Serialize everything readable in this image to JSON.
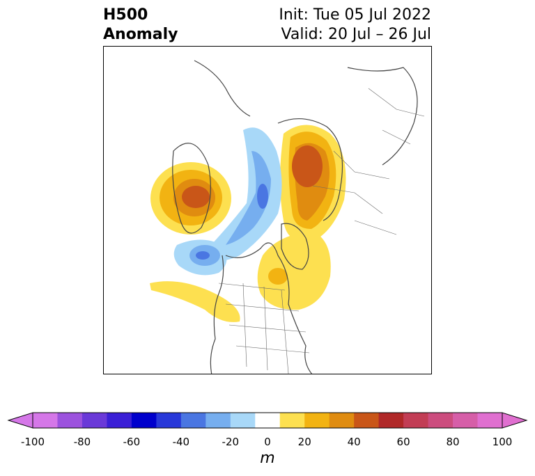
{
  "header": {
    "title_line1": "H500",
    "title_line2": "Anomaly",
    "init_text": "Init: Tue 05 Jul 2022",
    "valid_text": "Valid: 20 Jul – 26 Jul"
  },
  "map": {
    "field": "500 hPa geopotential height anomaly",
    "projection": "north polar stereographic"
  },
  "colorbar": {
    "unit_label": "m",
    "extend": "both",
    "tick_labels": [
      "-100",
      "-80",
      "-60",
      "-40",
      "-20",
      "0",
      "20",
      "40",
      "60",
      "80",
      "100"
    ],
    "levels": [
      -100,
      -90,
      -80,
      -70,
      -60,
      -50,
      -40,
      -30,
      -20,
      -10,
      10,
      20,
      30,
      40,
      50,
      60,
      70,
      80,
      90,
      100
    ],
    "colors": [
      "#d577e8",
      "#9c52de",
      "#6a39d8",
      "#3a1fd6",
      "#0000cc",
      "#2838d9",
      "#4a76e2",
      "#76aeef",
      "#a8d8f8",
      "#ffffff",
      "#fde050",
      "#f2b312",
      "#e08c10",
      "#c95618",
      "#b02828",
      "#c23d55",
      "#cc4c7e",
      "#d65ea8",
      "#e06fd0"
    ],
    "extend_min_color": "#d577e8",
    "extend_max_color": "#e06fd0"
  }
}
